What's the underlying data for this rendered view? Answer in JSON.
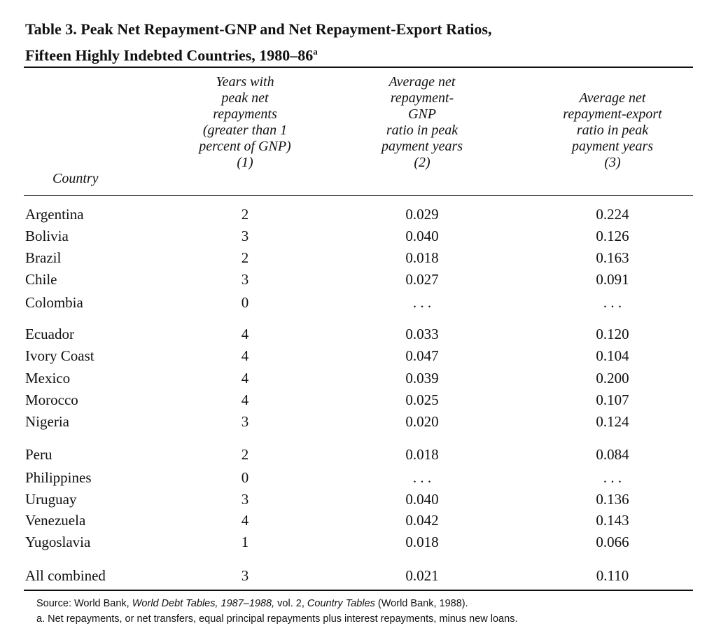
{
  "table": {
    "title_line1": "Table 3. Peak Net Repayment-GNP and Net Repayment-Export Ratios,",
    "title_line2": "Fifteen Highly Indebted Countries, 1980–86",
    "title_footnote_marker": "a",
    "headers": {
      "country": "Country",
      "col1": [
        "Years with",
        "peak net",
        "repayments",
        "(greater than 1",
        "percent of GNP)",
        "(1)"
      ],
      "col2": [
        "Average net",
        "repayment-",
        "GNP",
        "ratio in peak",
        "payment years",
        "(2)"
      ],
      "col3": [
        "Average net",
        "repayment-export",
        "ratio in peak",
        "payment years",
        "(3)"
      ]
    },
    "rows": [
      {
        "country": "Argentina",
        "years": "2",
        "gnp_ratio": "0.029",
        "export_ratio": "0.224"
      },
      {
        "country": "Bolivia",
        "years": "3",
        "gnp_ratio": "0.040",
        "export_ratio": "0.126"
      },
      {
        "country": "Brazil",
        "years": "2",
        "gnp_ratio": "0.018",
        "export_ratio": "0.163"
      },
      {
        "country": "Chile",
        "years": "3",
        "gnp_ratio": "0.027",
        "export_ratio": "0.091"
      },
      {
        "country": "Colombia",
        "years": "0",
        "gnp_ratio": ". . .",
        "export_ratio": ". . ."
      },
      {
        "country": "Ecuador",
        "years": "4",
        "gnp_ratio": "0.033",
        "export_ratio": "0.120"
      },
      {
        "country": "Ivory Coast",
        "years": "4",
        "gnp_ratio": "0.047",
        "export_ratio": "0.104"
      },
      {
        "country": "Mexico",
        "years": "4",
        "gnp_ratio": "0.039",
        "export_ratio": "0.200"
      },
      {
        "country": "Morocco",
        "years": "4",
        "gnp_ratio": "0.025",
        "export_ratio": "0.107"
      },
      {
        "country": "Nigeria",
        "years": "3",
        "gnp_ratio": "0.020",
        "export_ratio": "0.124"
      },
      {
        "country": "Peru",
        "years": "2",
        "gnp_ratio": "0.018",
        "export_ratio": "0.084"
      },
      {
        "country": "Philippines",
        "years": "0",
        "gnp_ratio": ". . .",
        "export_ratio": ". . ."
      },
      {
        "country": "Uruguay",
        "years": "3",
        "gnp_ratio": "0.040",
        "export_ratio": "0.136"
      },
      {
        "country": "Venezuela",
        "years": "4",
        "gnp_ratio": "0.042",
        "export_ratio": "0.143"
      },
      {
        "country": "Yugoslavia",
        "years": "1",
        "gnp_ratio": "0.018",
        "export_ratio": "0.066"
      },
      {
        "country": "All combined",
        "years": "3",
        "gnp_ratio": "0.021",
        "export_ratio": "0.110"
      }
    ],
    "notes": {
      "source_prefix": "Source: World Bank, ",
      "source_title": "World Debt Tables, 1987–1988,",
      "source_middle": " vol. 2, ",
      "source_title2": "Country Tables",
      "source_suffix": " (World Bank, 1988).",
      "footnote_a": "a. Net repayments, or net transfers, equal principal repayments plus interest repayments, minus new loans."
    }
  }
}
